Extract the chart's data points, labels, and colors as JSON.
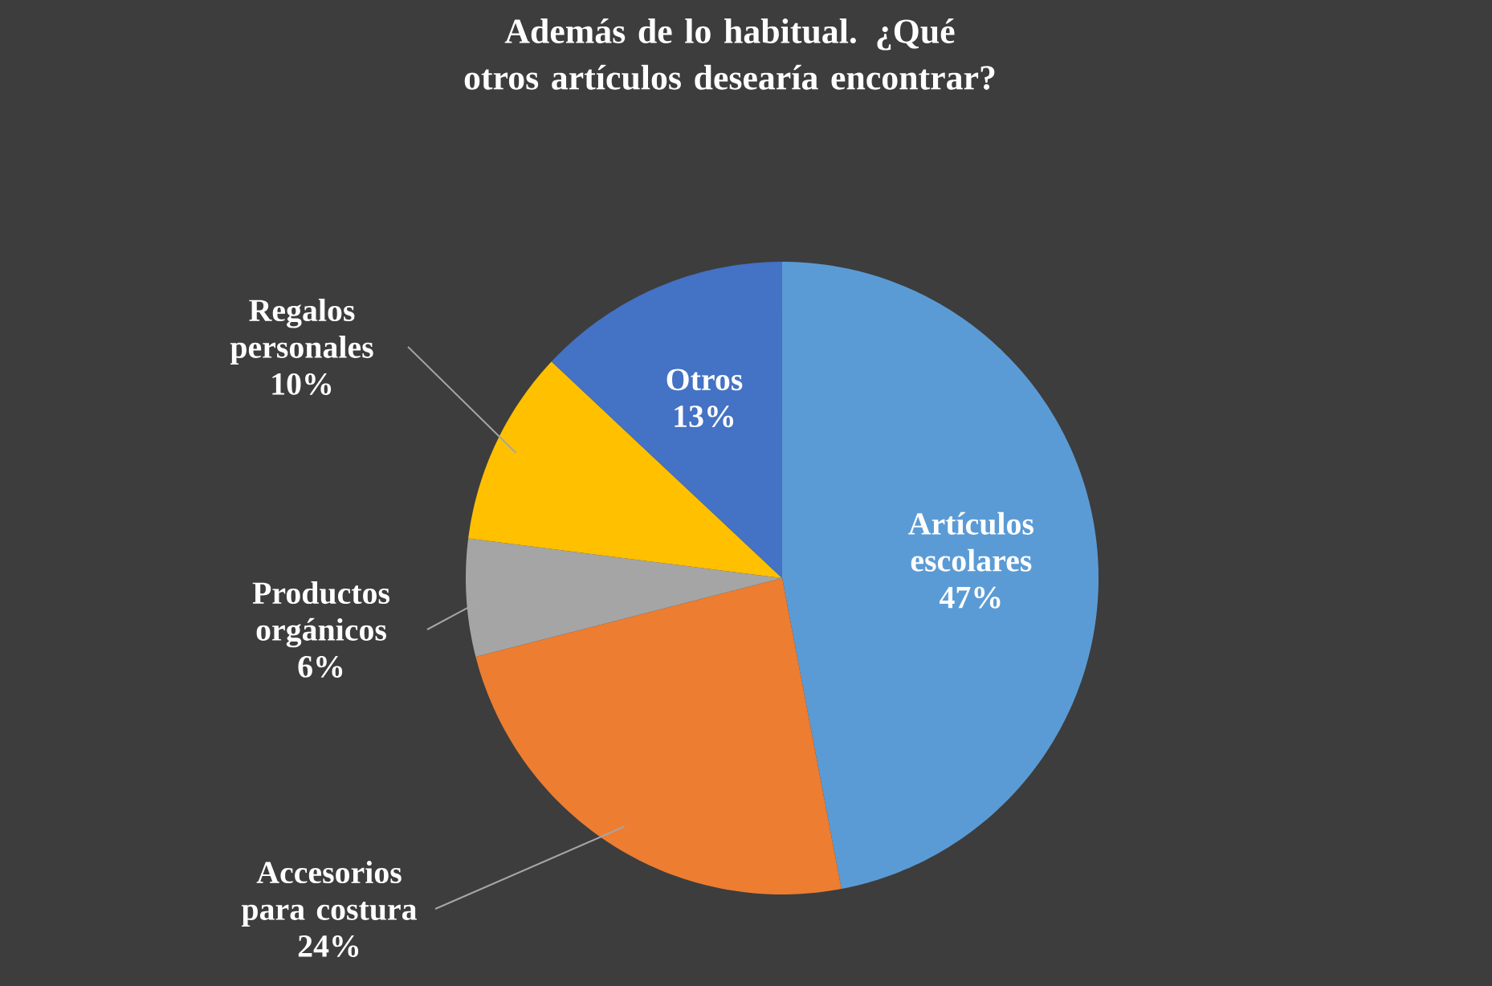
{
  "chart_data": {
    "type": "pie",
    "title": "Además de lo habitual. ¿Qué otros artículos desearía encontrar?",
    "categories": [
      "Artículos escolares",
      "Accesorios para costura",
      "Productos orgánicos",
      "Regalos personales",
      "Otros"
    ],
    "values": [
      47,
      24,
      6,
      10,
      13
    ],
    "value_labels": [
      "47%",
      "24%",
      "6%",
      "10%",
      "13%"
    ],
    "colors": [
      "#5b9bd5",
      "#ed7d31",
      "#a5a5a5",
      "#ffc000",
      "#4472c4"
    ]
  }
}
